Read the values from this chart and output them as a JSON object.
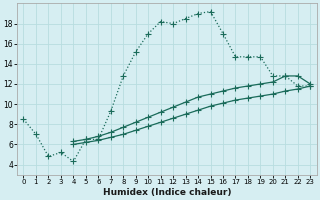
{
  "xlabel": "Humidex (Indice chaleur)",
  "bg_color": "#d6eef2",
  "grid_color": "#b8dde0",
  "line_color": "#1a6b5a",
  "xlim": [
    -0.5,
    23.5
  ],
  "ylim": [
    3.0,
    20.0
  ],
  "yticks": [
    4,
    6,
    8,
    10,
    12,
    14,
    16,
    18
  ],
  "xticks": [
    0,
    1,
    2,
    3,
    4,
    5,
    6,
    7,
    8,
    9,
    10,
    11,
    12,
    13,
    14,
    15,
    16,
    17,
    18,
    19,
    20,
    21,
    22,
    23
  ],
  "series1_x": [
    0,
    1,
    2,
    3,
    4,
    5,
    6,
    7,
    8,
    9,
    10,
    11,
    12,
    13,
    14,
    15,
    16,
    17,
    18,
    19,
    20,
    21,
    22,
    23
  ],
  "series1_y": [
    8.5,
    7.0,
    4.8,
    5.2,
    4.3,
    6.5,
    6.5,
    9.3,
    12.8,
    15.2,
    17.0,
    18.2,
    18.0,
    18.5,
    19.0,
    19.2,
    17.0,
    14.7,
    14.7,
    14.7,
    12.8,
    12.8,
    11.8,
    11.8
  ],
  "series2_x": [
    4,
    5,
    6,
    7,
    8,
    9,
    10,
    11,
    12,
    13,
    14,
    15,
    16,
    17,
    18,
    19,
    20,
    21,
    22,
    23
  ],
  "series2_y": [
    6.3,
    6.5,
    6.8,
    7.2,
    7.7,
    8.2,
    8.7,
    9.2,
    9.7,
    10.2,
    10.7,
    11.0,
    11.3,
    11.6,
    11.8,
    12.0,
    12.2,
    12.8,
    12.8,
    12.0
  ],
  "series3_x": [
    4,
    5,
    6,
    7,
    8,
    9,
    10,
    11,
    12,
    13,
    14,
    15,
    16,
    17,
    18,
    19,
    20,
    21,
    22,
    23
  ],
  "series3_y": [
    6.0,
    6.2,
    6.4,
    6.7,
    7.0,
    7.4,
    7.8,
    8.2,
    8.6,
    9.0,
    9.4,
    9.8,
    10.1,
    10.4,
    10.6,
    10.8,
    11.0,
    11.3,
    11.5,
    11.8
  ]
}
